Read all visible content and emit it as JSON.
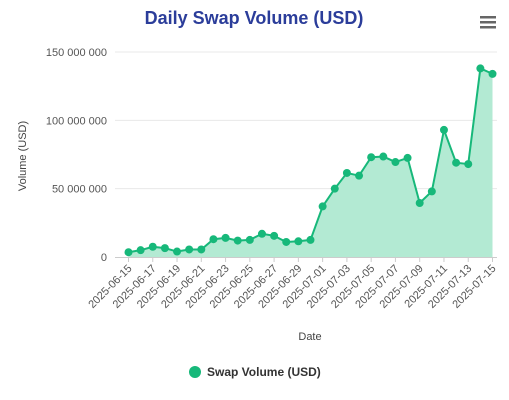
{
  "chart_data": {
    "type": "area",
    "title": "Daily Swap Volume (USD)",
    "xlabel": "Date",
    "ylabel": "Volume (USD)",
    "ylim": [
      0,
      150000000
    ],
    "yticks": [
      0,
      50000000,
      100000000,
      150000000
    ],
    "ytick_labels": [
      "0",
      "50 000 000",
      "100 000 000",
      "150 000 000"
    ],
    "xtick_labels": [
      "2025-06-15",
      "2025-06-17",
      "2025-06-19",
      "2025-06-21",
      "2025-06-23",
      "2025-06-25",
      "2025-06-27",
      "2025-06-29",
      "2025-07-01",
      "2025-07-03",
      "2025-07-05",
      "2025-07-07",
      "2025-07-09",
      "2025-07-11",
      "2025-07-13",
      "2025-07-15"
    ],
    "x": [
      "2025-06-15",
      "2025-06-16",
      "2025-06-17",
      "2025-06-18",
      "2025-06-19",
      "2025-06-20",
      "2025-06-21",
      "2025-06-22",
      "2025-06-23",
      "2025-06-24",
      "2025-06-25",
      "2025-06-26",
      "2025-06-27",
      "2025-06-28",
      "2025-06-29",
      "2025-06-30",
      "2025-07-01",
      "2025-07-02",
      "2025-07-03",
      "2025-07-04",
      "2025-07-05",
      "2025-07-06",
      "2025-07-07",
      "2025-07-08",
      "2025-07-09",
      "2025-07-10",
      "2025-07-11",
      "2025-07-12",
      "2025-07-13",
      "2025-07-14",
      "2025-07-15"
    ],
    "series": [
      {
        "name": "Swap Volume (USD)",
        "color": "#17b87a",
        "fill": "#b3ead3",
        "values": [
          3500000,
          5000000,
          7500000,
          6500000,
          4000000,
          5500000,
          5500000,
          13000000,
          14000000,
          12000000,
          12500000,
          17000000,
          15500000,
          11000000,
          11500000,
          12500000,
          37000000,
          50000000,
          61500000,
          59500000,
          73000000,
          73500000,
          69500000,
          72500000,
          39500000,
          48000000,
          93000000,
          69000000,
          68000000,
          138000000,
          134000000
        ]
      }
    ],
    "legend": "bottom-center",
    "grid": true
  },
  "ui": {
    "menu_icon": "hamburger-menu-icon"
  }
}
